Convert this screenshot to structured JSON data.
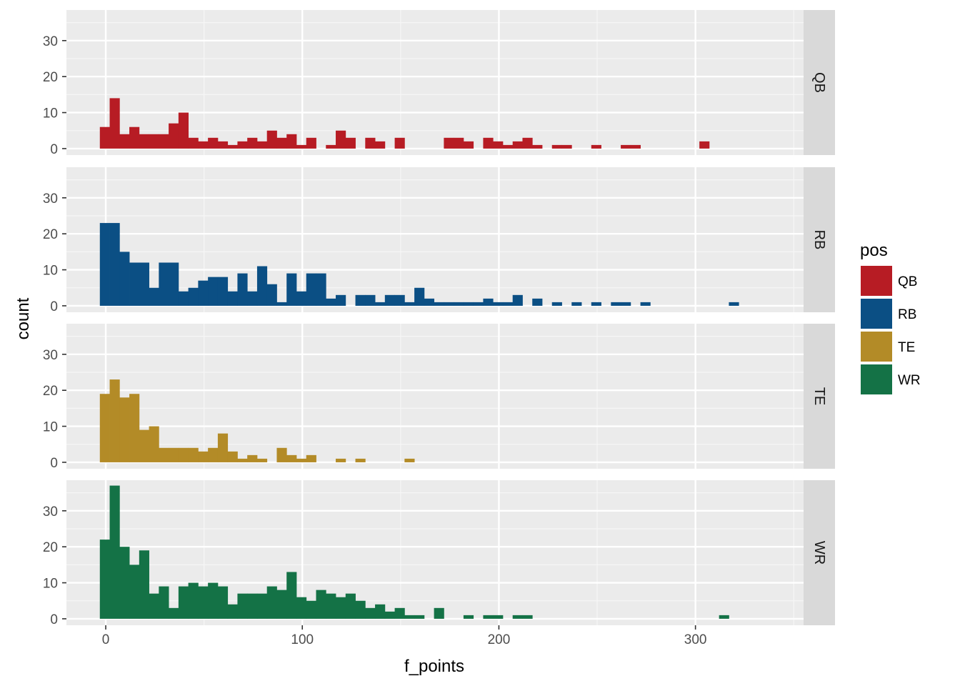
{
  "chart_data": {
    "type": "bar",
    "subtype": "faceted-histogram",
    "facet_by": "pos",
    "facet_direction": "rows",
    "xlabel": "f_points",
    "ylabel": "count",
    "xlim": [
      -20,
      355
    ],
    "ylim": [
      -1.8,
      38.5
    ],
    "x_ticks": [
      0,
      100,
      200,
      300
    ],
    "y_ticks": [
      0,
      10,
      20,
      30
    ],
    "bin_start": -3,
    "bin_width": 5,
    "grid": true,
    "legend": {
      "title": "pos",
      "position": "right",
      "entries": [
        {
          "label": "QB",
          "color": "#B71C24"
        },
        {
          "label": "RB",
          "color": "#0B4F84"
        },
        {
          "label": "TE",
          "color": "#B38B27"
        },
        {
          "label": "WR",
          "color": "#147246"
        }
      ]
    },
    "panels": [
      {
        "label": "QB",
        "color": "#B71C24",
        "counts": [
          6,
          14,
          4,
          6,
          4,
          4,
          4,
          7,
          10,
          3,
          2,
          3,
          2,
          1,
          2,
          3,
          2,
          5,
          3,
          4,
          1,
          3,
          0,
          1,
          5,
          3,
          0,
          3,
          2,
          0,
          3,
          0,
          0,
          0,
          0,
          3,
          3,
          2,
          0,
          3,
          2,
          1,
          2,
          3,
          1,
          0,
          1,
          1,
          0,
          0,
          1,
          0,
          0,
          1,
          1,
          0,
          0,
          0,
          0,
          0,
          0,
          2,
          0
        ]
      },
      {
        "label": "RB",
        "color": "#0B4F84",
        "counts": [
          23,
          23,
          15,
          12,
          12,
          5,
          12,
          12,
          4,
          5,
          7,
          8,
          8,
          4,
          9,
          4,
          11,
          6,
          1,
          9,
          4,
          9,
          9,
          2,
          3,
          0,
          3,
          3,
          1,
          3,
          3,
          1,
          5,
          2,
          1,
          1,
          1,
          1,
          1,
          2,
          1,
          1,
          3,
          0,
          2,
          0,
          1,
          0,
          1,
          0,
          1,
          0,
          1,
          1,
          0,
          1,
          0,
          0,
          0,
          0,
          0,
          0,
          0,
          0,
          1
        ]
      },
      {
        "label": "TE",
        "color": "#B38B27",
        "counts": [
          19,
          23,
          18,
          19,
          9,
          10,
          4,
          4,
          4,
          4,
          3,
          4,
          8,
          3,
          1,
          2,
          1,
          0,
          4,
          2,
          1,
          2,
          0,
          0,
          1,
          0,
          1,
          0,
          0,
          0,
          0,
          1
        ]
      },
      {
        "label": "WR",
        "color": "#147246",
        "counts": [
          22,
          37,
          20,
          15,
          19,
          7,
          9,
          3,
          9,
          10,
          9,
          10,
          9,
          4,
          7,
          7,
          7,
          9,
          8,
          13,
          6,
          5,
          8,
          7,
          6,
          7,
          5,
          3,
          4,
          2,
          3,
          1,
          1,
          0,
          3,
          0,
          0,
          1,
          0,
          1,
          1,
          0,
          1,
          1,
          0,
          0,
          0,
          0,
          0,
          0,
          0,
          0,
          0,
          0,
          0,
          0,
          0,
          0,
          0,
          0,
          0,
          0,
          0,
          1
        ]
      }
    ]
  }
}
